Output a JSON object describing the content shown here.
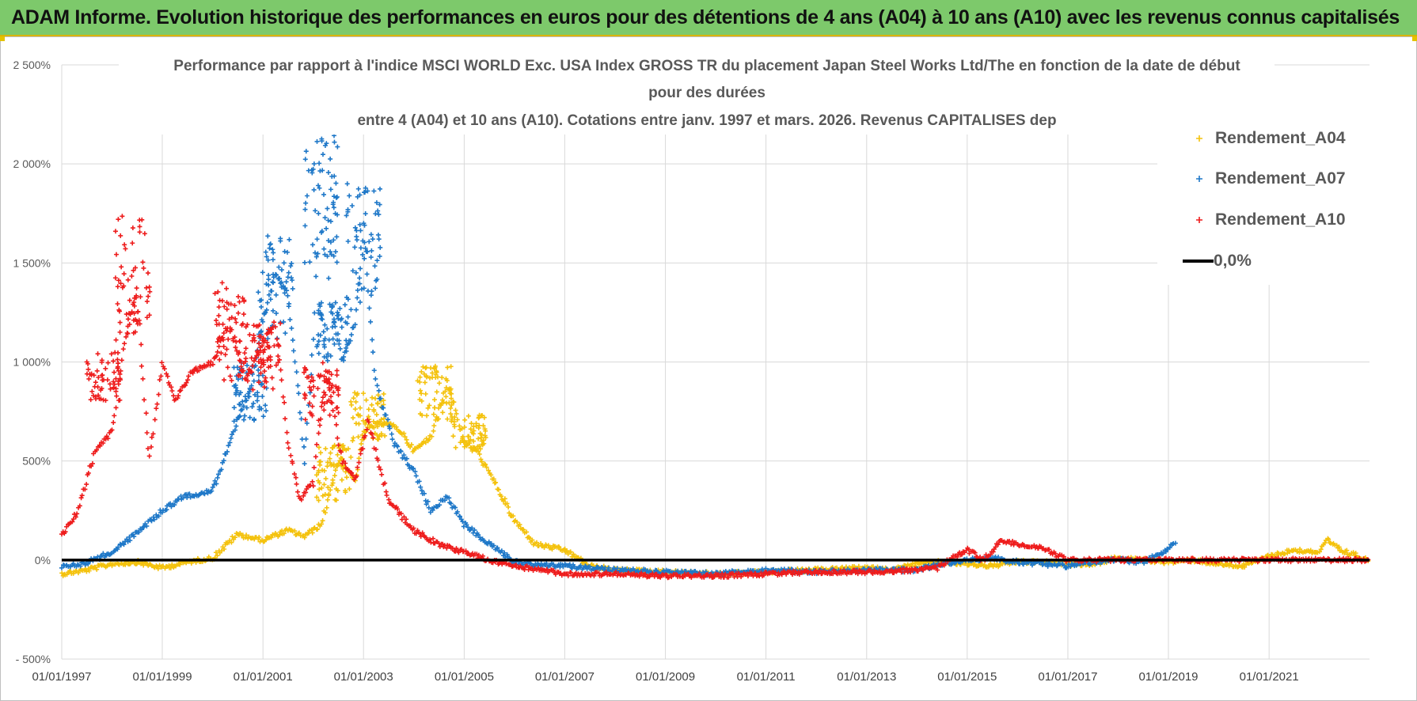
{
  "header": {
    "banner": "ADAM Informe. Evolution historique des performances en euros pour des détentions de 4 ans (A04) à 10 ans (A10) avec les revenus connus capitalisés"
  },
  "chart_data": {
    "type": "scatter",
    "title_lines": [
      "Performance par rapport à l'indice MSCI WORLD Exc. USA Index GROSS TR  du placement Japan Steel Works Ltd/The en fonction de la date de début",
      "pour des durées",
      "entre 4 (A04) et 10 ans (A10). Cotations entre janv. 1997 et mars. 2026. Revenus CAPITALISES dep"
    ],
    "x_range": [
      "1997-01-01",
      "2022-12-31"
    ],
    "x_ticks": [
      "01/01/1997",
      "01/01/1999",
      "01/01/2001",
      "01/01/2003",
      "01/01/2005",
      "01/01/2007",
      "01/01/2009",
      "01/01/2011",
      "01/01/2013",
      "01/01/2015",
      "01/01/2017",
      "01/01/2019",
      "01/01/2021"
    ],
    "y_range": [
      -500,
      2500
    ],
    "y_ticks": [
      -500,
      0,
      500,
      1000,
      1500,
      2000,
      2500
    ],
    "y_tick_labels": [
      "- 500%",
      "0%",
      "500%",
      "1 000%",
      "1 500%",
      "2 000%",
      "2 500%"
    ],
    "grid": true,
    "legend": {
      "position": "top-right",
      "entries": [
        "Rendement_A04",
        "Rendement_A07",
        "Rendement_A10",
        "0,0%"
      ]
    },
    "series": [
      {
        "name": "Rendement_A04",
        "color": "#f4c20d",
        "x": [
          "1997-01-01",
          "1997-07-01",
          "1998-01-01",
          "1998-07-01",
          "1999-01-01",
          "1999-07-01",
          "2000-01-01",
          "2000-07-01",
          "2001-01-01",
          "2001-07-01",
          "2001-11-01",
          "2002-03-01",
          "2002-07-01",
          "2002-11-01",
          "2003-01-01",
          "2003-06-01",
          "2003-10-01",
          "2004-01-01",
          "2004-05-01",
          "2004-09-01",
          "2005-01-01",
          "2005-04-01",
          "2005-08-01",
          "2006-01-01",
          "2006-06-01",
          "2007-01-01",
          "2007-07-01",
          "2008-01-01",
          "2009-01-01",
          "2010-01-01",
          "2011-01-01",
          "2012-01-01",
          "2013-01-01",
          "2013-07-01",
          "2014-01-01",
          "2014-07-01",
          "2015-01-01",
          "2015-07-01",
          "2016-01-01",
          "2016-07-01",
          "2017-01-01",
          "2017-07-01",
          "2018-01-01",
          "2018-07-01",
          "2019-01-01",
          "2019-07-01",
          "2020-01-01",
          "2020-07-01",
          "2021-01-01",
          "2021-07-01",
          "2022-01-01",
          "2022-03-01",
          "2022-06-01",
          "2022-12-31"
        ],
        "values": [
          -70,
          -50,
          -20,
          -10,
          -40,
          -10,
          10,
          130,
          100,
          150,
          120,
          180,
          500,
          400,
          650,
          700,
          650,
          550,
          620,
          900,
          600,
          550,
          400,
          200,
          80,
          50,
          -30,
          -50,
          -60,
          -70,
          -60,
          -50,
          -40,
          -50,
          -20,
          -10,
          -20,
          -30,
          -10,
          -10,
          -20,
          -20,
          10,
          0,
          -10,
          0,
          -20,
          -30,
          20,
          50,
          40,
          100,
          50,
          0
        ],
        "band": [
          {
            "x": "2002-06-01",
            "lo": 300,
            "hi": 580
          },
          {
            "x": "2003-02-01",
            "lo": 600,
            "hi": 850
          },
          {
            "x": "2004-06-01",
            "lo": 700,
            "hi": 980
          },
          {
            "x": "2005-02-01",
            "lo": 550,
            "hi": 750
          }
        ]
      },
      {
        "name": "Rendement_A07",
        "color": "#1f78c8",
        "x": [
          "1997-01-01",
          "1997-06-01",
          "1998-01-01",
          "1998-06-01",
          "1999-01-01",
          "1999-06-01",
          "2000-01-01",
          "2000-06-01",
          "2000-10-01",
          "2001-01-01",
          "2001-04-01",
          "2001-07-01",
          "2001-09-01",
          "2001-11-01",
          "2002-01-01",
          "2002-03-01",
          "2002-05-01",
          "2002-08-01",
          "2002-11-01",
          "2003-01-01",
          "2003-04-01",
          "2003-08-01",
          "2004-01-01",
          "2004-05-01",
          "2004-09-01",
          "2005-01-01",
          "2005-06-01",
          "2006-01-01",
          "2006-06-01",
          "2007-01-01",
          "2008-01-01",
          "2009-01-01",
          "2010-01-01",
          "2011-01-01",
          "2012-01-01",
          "2013-01-01",
          "2014-01-01",
          "2014-07-01",
          "2015-01-01",
          "2015-07-01",
          "2016-01-01",
          "2016-07-01",
          "2017-01-01",
          "2017-07-01",
          "2018-01-01",
          "2018-07-01",
          "2019-01-01",
          "2019-03-01"
        ],
        "values": [
          -30,
          -20,
          40,
          120,
          250,
          320,
          350,
          650,
          850,
          1200,
          1450,
          1350,
          950,
          500,
          1100,
          2100,
          1300,
          1000,
          1200,
          1700,
          900,
          600,
          450,
          250,
          320,
          180,
          100,
          -10,
          -20,
          -30,
          -50,
          -60,
          -70,
          -50,
          -60,
          -50,
          -50,
          -20,
          0,
          10,
          -10,
          -20,
          -30,
          -10,
          0,
          -10,
          50,
          100
        ],
        "band": [
          {
            "x": "2000-10-01",
            "lo": 700,
            "hi": 1000
          },
          {
            "x": "2001-04-01",
            "lo": 1100,
            "hi": 1650
          },
          {
            "x": "2002-03-01",
            "lo": 1500,
            "hi": 2150
          },
          {
            "x": "2002-06-01",
            "lo": 1000,
            "hi": 1300
          },
          {
            "x": "2003-01-01",
            "lo": 1300,
            "hi": 1900
          }
        ]
      },
      {
        "name": "Rendement_A10",
        "color": "#ee1c1c",
        "x": [
          "1997-01-01",
          "1997-05-01",
          "1997-09-01",
          "1998-01-01",
          "1998-04-01",
          "1998-07-01",
          "1998-10-01",
          "1999-01-01",
          "1999-04-01",
          "1999-08-01",
          "2000-01-01",
          "2000-05-01",
          "2000-09-01",
          "2001-01-01",
          "2001-04-01",
          "2001-07-01",
          "2001-10-01",
          "2002-01-01",
          "2002-04-01",
          "2002-08-01",
          "2002-11-01",
          "2003-02-01",
          "2003-07-01",
          "2004-01-01",
          "2004-07-01",
          "2005-01-01",
          "2005-07-01",
          "2006-01-01",
          "2006-07-01",
          "2007-01-01",
          "2008-01-01",
          "2009-01-01",
          "2010-01-01",
          "2011-01-01",
          "2012-01-01",
          "2013-01-01",
          "2014-01-01",
          "2014-06-01",
          "2014-10-01",
          "2015-01-01",
          "2015-05-01",
          "2015-09-01",
          "2016-01-01",
          "2016-07-01",
          "2017-01-01",
          "2018-01-01",
          "2019-01-01",
          "2020-01-01",
          "2021-01-01",
          "2022-01-01",
          "2022-12-31"
        ],
        "values": [
          120,
          250,
          550,
          650,
          1100,
          1350,
          500,
          1000,
          800,
          950,
          1000,
          1200,
          900,
          1100,
          1200,
          600,
          300,
          400,
          950,
          500,
          400,
          700,
          300,
          150,
          80,
          40,
          0,
          -30,
          -50,
          -70,
          -70,
          -80,
          -80,
          -70,
          -60,
          -60,
          -50,
          -40,
          20,
          50,
          0,
          100,
          80,
          60,
          0,
          0,
          0,
          0,
          0,
          0,
          0
        ],
        "band": [
          {
            "x": "1997-11-01",
            "lo": 800,
            "hi": 1050
          },
          {
            "x": "1998-06-01",
            "lo": 1100,
            "hi": 1750
          },
          {
            "x": "2000-05-01",
            "lo": 900,
            "hi": 1400
          },
          {
            "x": "2001-01-01",
            "lo": 850,
            "hi": 1200
          },
          {
            "x": "2002-03-01",
            "lo": 700,
            "hi": 1000
          }
        ]
      }
    ],
    "reference_line": {
      "name": "0,0%",
      "value": 0,
      "color": "#000000"
    }
  }
}
